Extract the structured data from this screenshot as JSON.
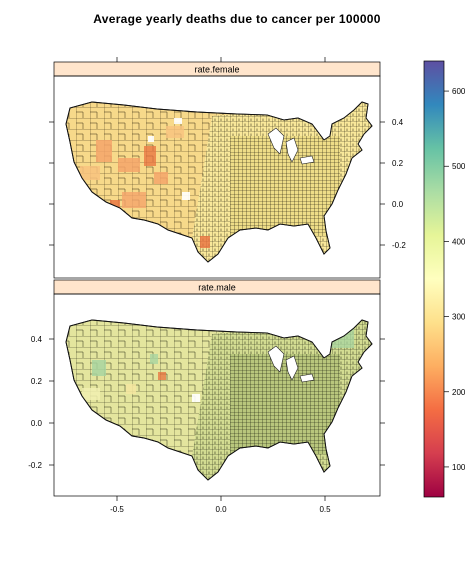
{
  "figure": {
    "title": "Average yearly deaths due to cancer per 100000"
  },
  "panels": [
    {
      "label": "rate.female"
    },
    {
      "label": "rate.male"
    }
  ],
  "axes": {
    "x_ticks": [
      "-0.5",
      "0.0",
      "0.5"
    ],
    "y_ticks": [
      "0.4",
      "0.2",
      "0.0",
      "-0.2"
    ],
    "y_tick_values": [
      0.4,
      0.2,
      0.0,
      -0.2
    ]
  },
  "colorkey": {
    "palette": "Spectral",
    "colors": [
      "#9E0142",
      "#D53E4F",
      "#F46D43",
      "#FDAE61",
      "#FEE08B",
      "#FFFFBF",
      "#E6F598",
      "#ABDDA4",
      "#66C2A5",
      "#3288BD",
      "#5E4FA2"
    ],
    "tick_labels": [
      "100",
      "200",
      "300",
      "400",
      "500",
      "600"
    ],
    "tick_values": [
      100,
      200,
      300,
      400,
      500,
      600
    ],
    "min": 60,
    "max": 640
  },
  "colors": {
    "strip_background": "#FFE5CC",
    "female_base": "#F9E89A",
    "male_base": "#CFD98E",
    "county_border": "#111111",
    "low_rate_patch": "#F4A46A",
    "very_low_patch": "#E8703E"
  }
}
